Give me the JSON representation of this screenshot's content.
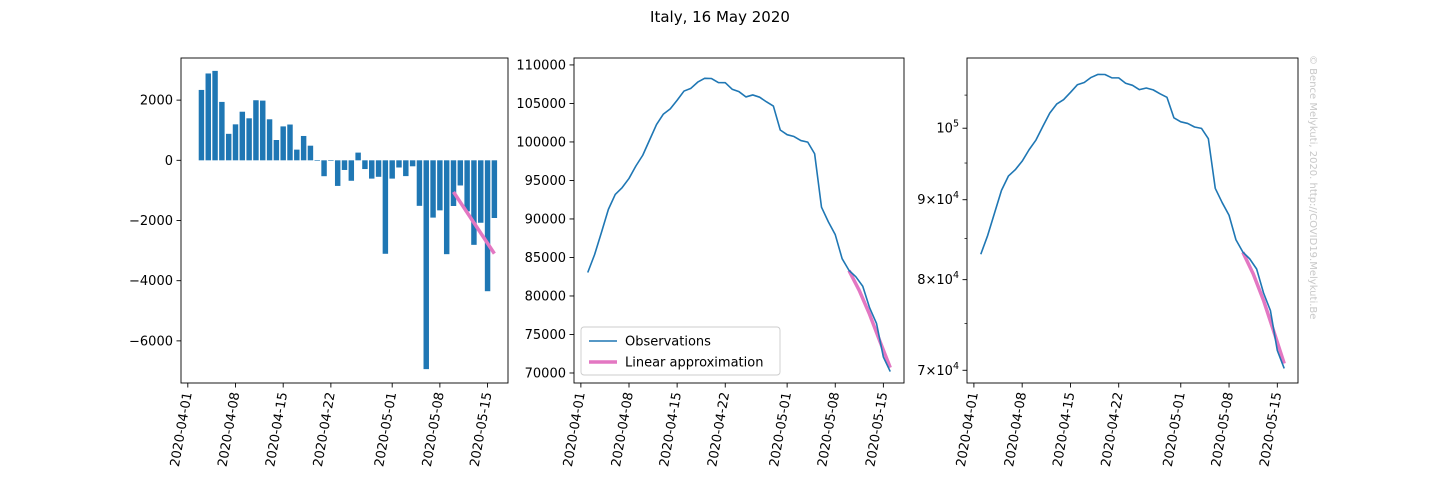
{
  "figure": {
    "title": "Italy, 16 May 2020",
    "watermark": "© Bence Melykuti, 2020. http://COVID19.Melykuti.Be"
  },
  "colors": {
    "observations": "#1f77b4",
    "linear": "#e377c2",
    "axis": "#000000"
  },
  "chart_data": [
    {
      "type": "bar",
      "title": "",
      "xlabel": "",
      "ylabel": "",
      "x_axis": "date",
      "xlim": [
        "2020-03-31",
        "2020-05-18"
      ],
      "ylim": [
        -7400,
        3400
      ],
      "xticks": [
        "2020-04-01",
        "2020-04-08",
        "2020-04-15",
        "2020-04-22",
        "2020-05-01",
        "2020-05-08",
        "2020-05-15"
      ],
      "yticks": [
        2000,
        0,
        -2000,
        -4000,
        -6000
      ],
      "ytick_labels": [
        "2000",
        "0",
        "−2000",
        "−4000",
        "−6000"
      ],
      "x": [
        "2020-04-03",
        "2020-04-04",
        "2020-04-05",
        "2020-04-06",
        "2020-04-07",
        "2020-04-08",
        "2020-04-09",
        "2020-04-10",
        "2020-04-11",
        "2020-04-12",
        "2020-04-13",
        "2020-04-14",
        "2020-04-15",
        "2020-04-16",
        "2020-04-17",
        "2020-04-18",
        "2020-04-19",
        "2020-04-20",
        "2020-04-21",
        "2020-04-22",
        "2020-04-23",
        "2020-04-24",
        "2020-04-25",
        "2020-04-26",
        "2020-04-27",
        "2020-04-28",
        "2020-04-29",
        "2020-04-30",
        "2020-05-01",
        "2020-05-02",
        "2020-05-03",
        "2020-05-04",
        "2020-05-05",
        "2020-05-06",
        "2020-05-07",
        "2020-05-08",
        "2020-05-09",
        "2020-05-10",
        "2020-05-11",
        "2020-05-12",
        "2020-05-13",
        "2020-05-14",
        "2020-05-15",
        "2020-05-16"
      ],
      "values": [
        2339,
        2886,
        2972,
        1941,
        880,
        1195,
        1615,
        1396,
        1996,
        1984,
        1363,
        675,
        1127,
        1189,
        355,
        809,
        486,
        -20,
        -528,
        -10,
        -851,
        -321,
        -680,
        256,
        -290,
        -608,
        -548,
        -3106,
        -608,
        -239,
        -525,
        -199,
        -1513,
        -6939,
        -1904,
        -1663,
        -3119,
        -1518,
        -836,
        -1696,
        -2809,
        -2075,
        -4350,
        -1917
      ],
      "linear_fit": {
        "x": [
          "2020-05-10",
          "2020-05-16"
        ],
        "y": [
          -1050,
          -3100
        ]
      }
    },
    {
      "type": "line",
      "title": "",
      "xlabel": "",
      "ylabel": "",
      "x_axis": "date",
      "xlim": [
        "2020-03-31",
        "2020-05-18"
      ],
      "ylim": [
        68700,
        110900
      ],
      "xticks": [
        "2020-04-01",
        "2020-04-08",
        "2020-04-15",
        "2020-04-22",
        "2020-05-01",
        "2020-05-08",
        "2020-05-15"
      ],
      "yticks": [
        110000,
        105000,
        100000,
        95000,
        90000,
        85000,
        80000,
        75000,
        70000
      ],
      "ytick_labels": [
        "110000",
        "105000",
        "100000",
        "95000",
        "90000",
        "85000",
        "80000",
        "75000",
        "70000"
      ],
      "legend": {
        "position": "lower left",
        "entries": [
          "Observations",
          "Linear approximation"
        ]
      },
      "series": [
        {
          "name": "Observations",
          "x_start": "2020-04-02",
          "values": [
            83049,
            85388,
            88274,
            91246,
            93187,
            94067,
            95262,
            96877,
            98273,
            100269,
            102253,
            103616,
            104291,
            105418,
            106607,
            106962,
            107771,
            108257,
            108237,
            107709,
            107699,
            106848,
            106527,
            105847,
            106103,
            105813,
            105205,
            104657,
            101551,
            100943,
            100704,
            100179,
            99980,
            98467,
            91528,
            89624,
            87961,
            84842,
            83324,
            82488,
            81266,
            78457,
            76440,
            72070,
            70187
          ]
        },
        {
          "name": "Linear approximation",
          "x_start": "2020-05-10",
          "values": [
            83300,
            80700,
            77600,
            74100,
            70700
          ],
          "x": [
            "2020-05-10",
            "2020-05-11.5",
            "2020-05-13",
            "2020-05-14.5",
            "2020-05-16"
          ]
        }
      ]
    },
    {
      "type": "line",
      "title": "",
      "xlabel": "",
      "ylabel": "",
      "x_axis": "date",
      "y_scale": "log",
      "xlim": [
        "2020-03-31",
        "2020-05-18"
      ],
      "ylim": [
        68700,
        110900
      ],
      "xticks": [
        "2020-04-01",
        "2020-04-08",
        "2020-04-15",
        "2020-04-22",
        "2020-05-01",
        "2020-05-08",
        "2020-05-15"
      ],
      "yticks": [
        100000,
        90000,
        80000,
        70000
      ],
      "ytick_labels": [
        {
          "base": "10",
          "mant": "",
          "exp": "5"
        },
        {
          "base": "10",
          "mant": "9×",
          "exp": "4"
        },
        {
          "base": "10",
          "mant": "8×",
          "exp": "4"
        },
        {
          "base": "10",
          "mant": "7×",
          "exp": "4"
        }
      ],
      "series": [
        {
          "name": "Observations",
          "x_start": "2020-04-02",
          "values": [
            83049,
            85388,
            88274,
            91246,
            93187,
            94067,
            95262,
            96877,
            98273,
            100269,
            102253,
            103616,
            104291,
            105418,
            106607,
            106962,
            107771,
            108257,
            108237,
            107709,
            107699,
            106848,
            106527,
            105847,
            106103,
            105813,
            105205,
            104657,
            101551,
            100943,
            100704,
            100179,
            99980,
            98467,
            91528,
            89624,
            87961,
            84842,
            83324,
            82488,
            81266,
            78457,
            76440,
            72070,
            70187
          ]
        },
        {
          "name": "Linear approximation",
          "x_start": "2020-05-10",
          "values": [
            83300,
            80700,
            77600,
            74100,
            70700
          ],
          "x": [
            "2020-05-10",
            "2020-05-11.5",
            "2020-05-13",
            "2020-05-14.5",
            "2020-05-16"
          ]
        }
      ]
    }
  ]
}
